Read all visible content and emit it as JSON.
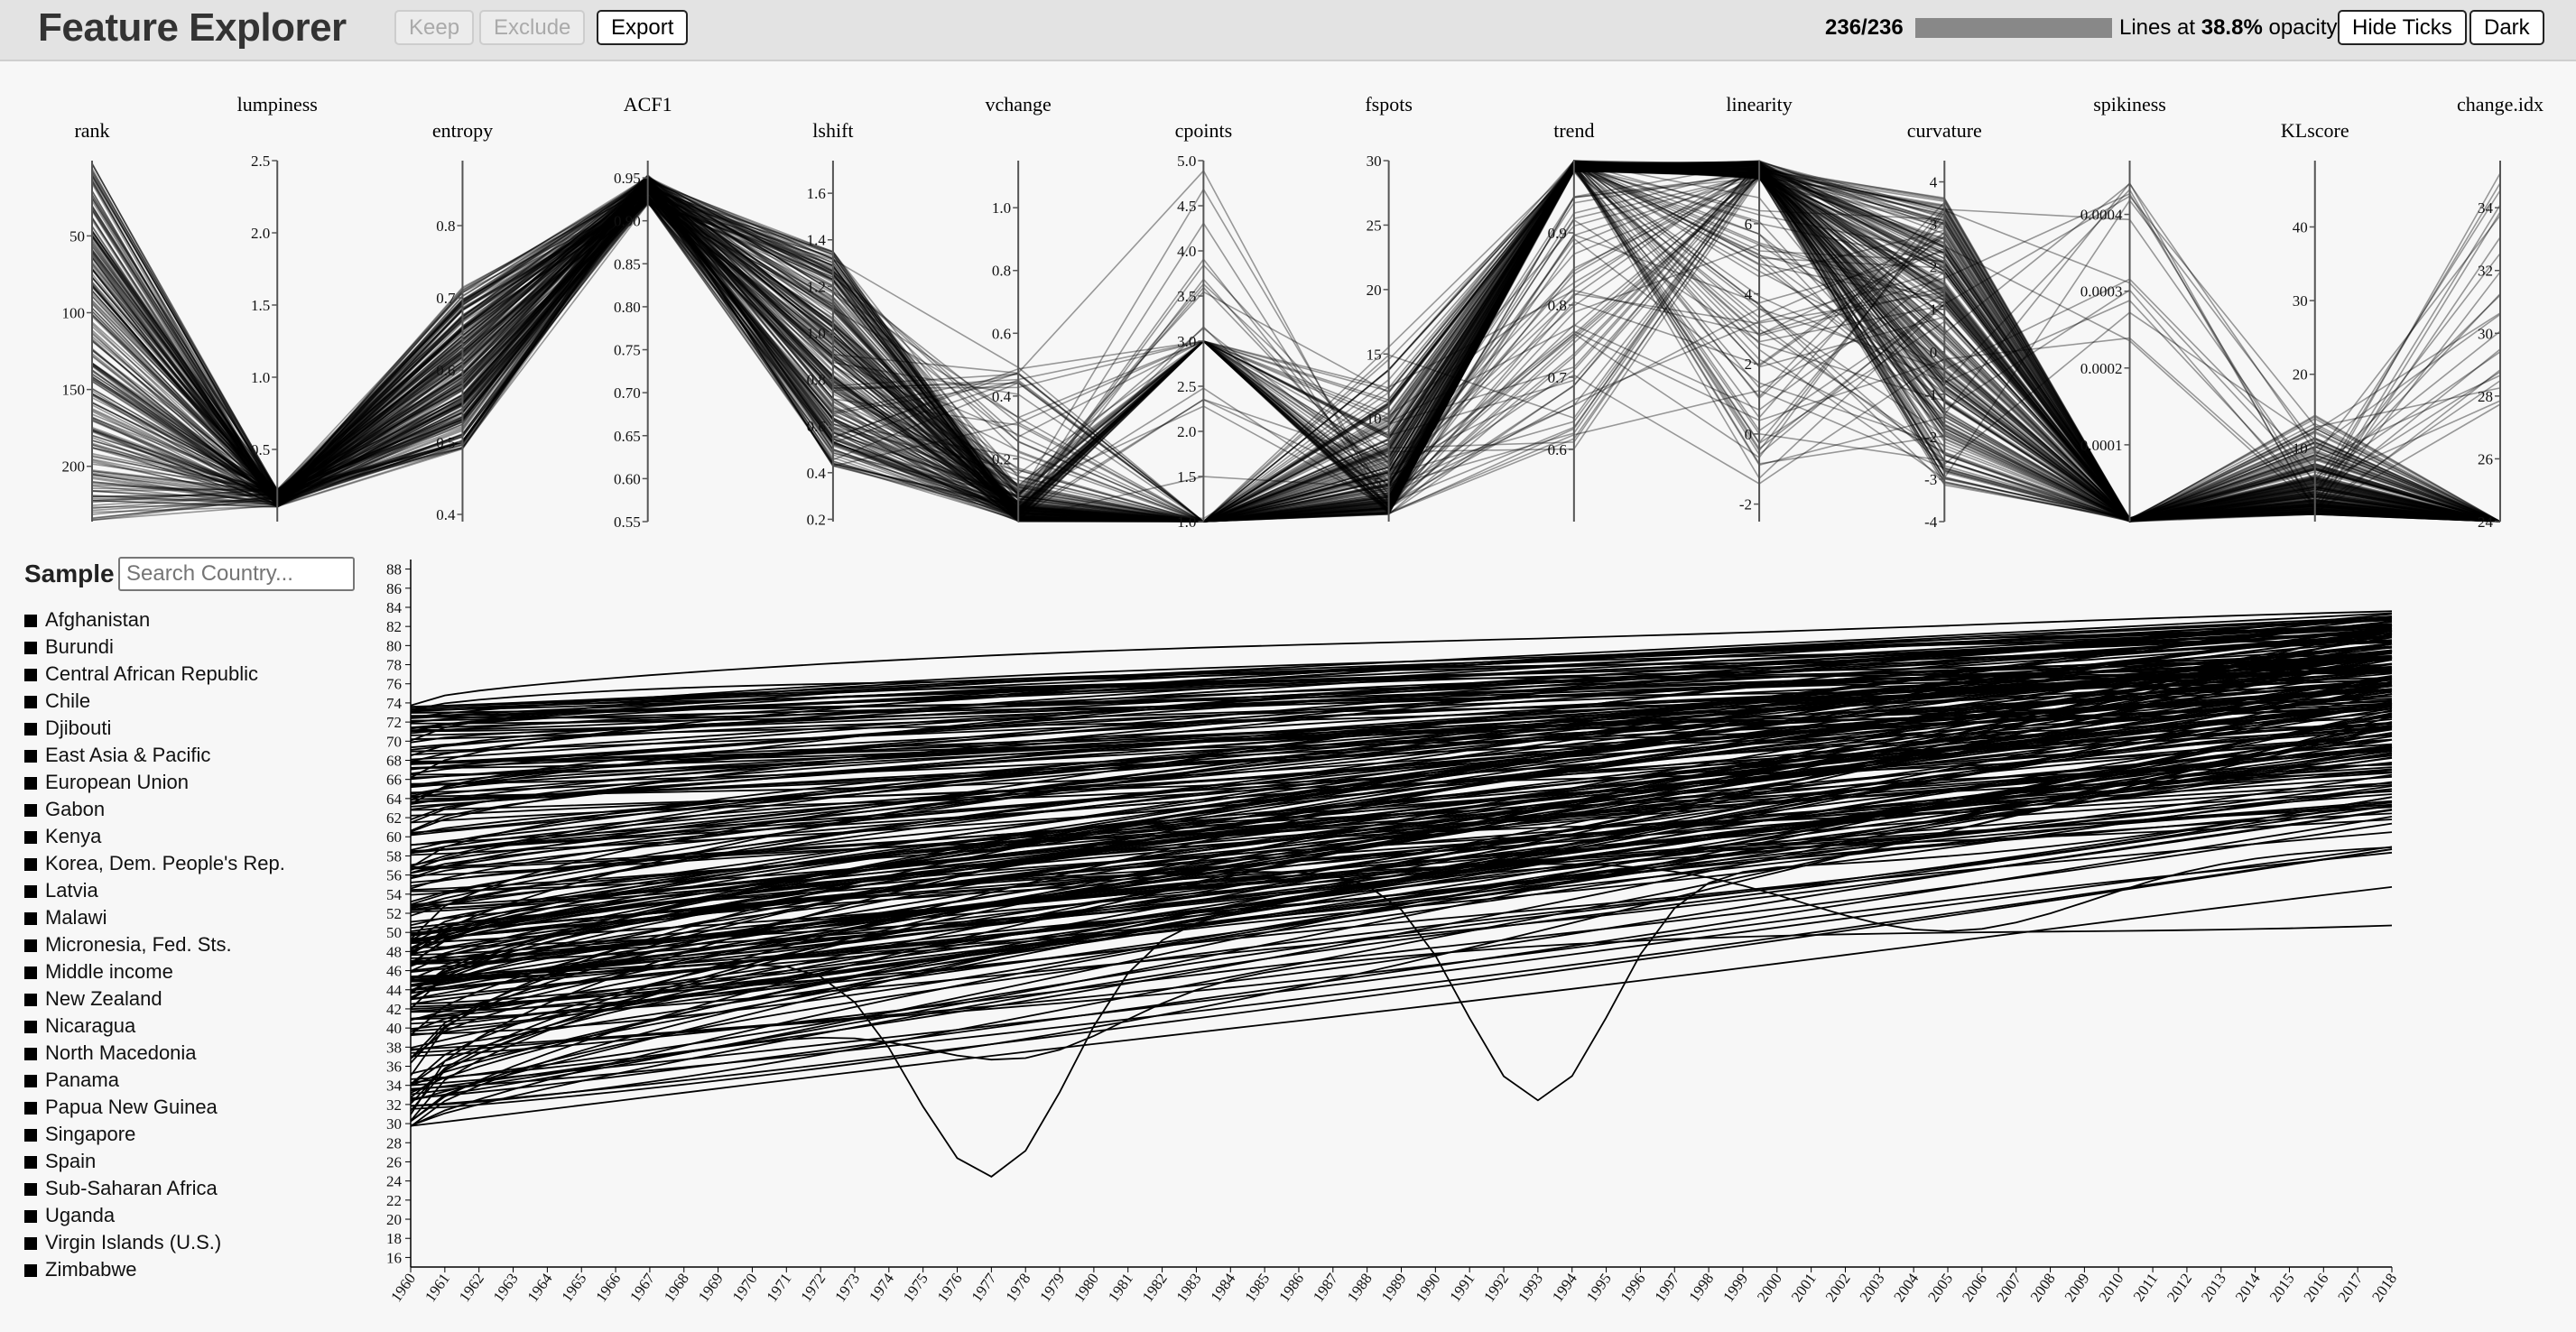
{
  "header": {
    "title": "Feature Explorer",
    "keep_label": "Keep",
    "exclude_label": "Exclude",
    "export_label": "Export",
    "count_text": "236/236",
    "progress": 1.0,
    "lines_prefix": "Lines at",
    "opacity_value": "38.8%",
    "lines_suffix": "opacity.",
    "hide_ticks_label": "Hide Ticks",
    "dark_label": "Dark"
  },
  "sidebar": {
    "title": "Sample",
    "search_placeholder": "Search Country...",
    "countries": [
      "Afghanistan",
      "Burundi",
      "Central African Republic",
      "Chile",
      "Djibouti",
      "East Asia & Pacific",
      "European Union",
      "Gabon",
      "Kenya",
      "Korea, Dem. People's Rep.",
      "Latvia",
      "Malawi",
      "Micronesia, Fed. Sts.",
      "Middle income",
      "New Zealand",
      "Nicaragua",
      "North Macedonia",
      "Panama",
      "Papua New Guinea",
      "Singapore",
      "Spain",
      "Sub-Saharan Africa",
      "Uganda",
      "Virgin Islands (U.S.)",
      "Zimbabwe"
    ]
  },
  "chart_data": [
    {
      "type": "parallel-coordinates",
      "axes": [
        {
          "name": "rank",
          "ticks": [
            "50",
            "100",
            "150",
            "200"
          ],
          "range": [
            1,
            236
          ],
          "inverted": true
        },
        {
          "name": "lumpiness",
          "ticks": [
            "0.5",
            "1.0",
            "1.5",
            "2.0",
            "2.5"
          ],
          "range": [
            0,
            2.5
          ]
        },
        {
          "name": "entropy",
          "ticks": [
            "0.4",
            "0.5",
            "0.6",
            "0.7",
            "0.8"
          ],
          "range": [
            0.39,
            0.89
          ]
        },
        {
          "name": "ACF1",
          "ticks": [
            "0.55",
            "0.60",
            "0.65",
            "0.70",
            "0.75",
            "0.80",
            "0.85",
            "0.90",
            "0.95"
          ],
          "range": [
            0.55,
            0.97
          ]
        },
        {
          "name": "lshift",
          "ticks": [
            "0.2",
            "0.4",
            "0.6",
            "0.8",
            "1.0",
            "1.2",
            "1.4",
            "1.6"
          ],
          "range": [
            0.19,
            1.74
          ]
        },
        {
          "name": "vchange",
          "ticks": [
            "0.2",
            "0.4",
            "0.6",
            "0.8",
            "1.0"
          ],
          "range": [
            0,
            1.15
          ]
        },
        {
          "name": "cpoints",
          "ticks": [
            "1.0",
            "1.5",
            "2.0",
            "2.5",
            "3.0",
            "3.5",
            "4.0",
            "4.5",
            "5.0"
          ],
          "range": [
            1,
            5
          ]
        },
        {
          "name": "fspots",
          "ticks": [
            "5",
            "10",
            "15",
            "20",
            "25",
            "30"
          ],
          "range": [
            2,
            30
          ]
        },
        {
          "name": "trend",
          "ticks": [
            "0.6",
            "0.7",
            "0.8",
            "0.9"
          ],
          "range": [
            0.5,
            1.0
          ]
        },
        {
          "name": "linearity",
          "ticks": [
            "-2",
            "0",
            "2",
            "4",
            "6"
          ],
          "range": [
            -2.5,
            7.8
          ]
        },
        {
          "name": "curvature",
          "ticks": [
            "-4",
            "-3",
            "-2",
            "-1",
            "0",
            "1",
            "2",
            "3",
            "4"
          ],
          "range": [
            -4,
            4.5
          ]
        },
        {
          "name": "spikiness",
          "ticks": [
            "0.0001",
            "0.0002",
            "0.0003",
            "0.0004"
          ],
          "range": [
            0,
            0.00047
          ]
        },
        {
          "name": "KLscore",
          "ticks": [
            "10",
            "20",
            "30",
            "40"
          ],
          "range": [
            0,
            49
          ]
        },
        {
          "name": "change.idx",
          "ticks": [
            "24",
            "26",
            "28",
            "30",
            "32",
            "34"
          ],
          "range": [
            24,
            35.5
          ]
        }
      ],
      "line_count": 236
    },
    {
      "type": "line",
      "x_start": 1960,
      "x_end": 2018,
      "x": [
        "1960",
        "1961",
        "1962",
        "1963",
        "1964",
        "1965",
        "1966",
        "1967",
        "1968",
        "1969",
        "1970",
        "1971",
        "1972",
        "1973",
        "1974",
        "1975",
        "1976",
        "1977",
        "1978",
        "1979",
        "1980",
        "1981",
        "1982",
        "1983",
        "1984",
        "1985",
        "1986",
        "1987",
        "1988",
        "1989",
        "1990",
        "1991",
        "1992",
        "1993",
        "1994",
        "1995",
        "1996",
        "1997",
        "1998",
        "1999",
        "2000",
        "2001",
        "2002",
        "2003",
        "2004",
        "2005",
        "2006",
        "2007",
        "2008",
        "2009",
        "2010",
        "2011",
        "2012",
        "2013",
        "2014",
        "2015",
        "2016",
        "2017",
        "2018"
      ],
      "y_ticks": [
        "16",
        "18",
        "20",
        "22",
        "24",
        "26",
        "28",
        "30",
        "32",
        "34",
        "36",
        "38",
        "40",
        "42",
        "44",
        "46",
        "48",
        "50",
        "52",
        "54",
        "56",
        "58",
        "60",
        "62",
        "64",
        "66",
        "68",
        "70",
        "72",
        "74",
        "76",
        "78",
        "80",
        "82",
        "84",
        "86",
        "88"
      ],
      "ylim": [
        15,
        89
      ],
      "series_count": 236
    }
  ]
}
